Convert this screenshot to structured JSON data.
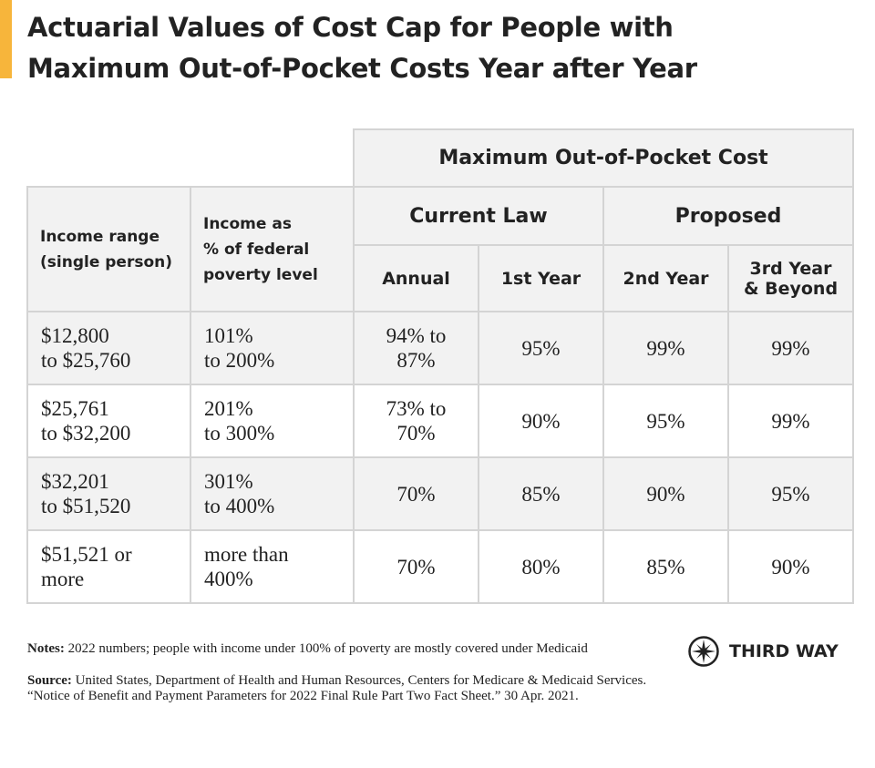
{
  "title_lines": [
    "Actuarial Values of Cost Cap for People with",
    "Maximum Out-of-Pocket Costs Year after Year"
  ],
  "table": {
    "group_header": "Maximum Out-of-Pocket Cost",
    "row_headers": [
      [
        "Income range",
        "(single person)"
      ],
      [
        "Income as",
        "% of federal",
        "poverty level"
      ]
    ],
    "groups": [
      "Current Law",
      "Proposed"
    ],
    "subheaders": [
      [
        "Annual"
      ],
      [
        "1st Year"
      ],
      [
        "2nd Year"
      ],
      [
        "3rd Year",
        "& Beyond"
      ]
    ],
    "rows": [
      [
        [
          "$12,800",
          "to $25,760"
        ],
        [
          "101%",
          "to 200%"
        ],
        [
          "94% to",
          "87%"
        ],
        [
          "95%"
        ],
        [
          "99%"
        ],
        [
          "99%"
        ]
      ],
      [
        [
          "$25,761",
          "to $32,200"
        ],
        [
          "201%",
          "to 300%"
        ],
        [
          "73% to",
          "70%"
        ],
        [
          "90%"
        ],
        [
          "95%"
        ],
        [
          "99%"
        ]
      ],
      [
        [
          "$32,201",
          "to $51,520"
        ],
        [
          "301%",
          "to 400%"
        ],
        [
          "70%"
        ],
        [
          "85%"
        ],
        [
          "90%"
        ],
        [
          "95%"
        ]
      ],
      [
        [
          "$51,521 or",
          "more"
        ],
        [
          "more than",
          "400%"
        ],
        [
          "70%"
        ],
        [
          "80%"
        ],
        [
          "85%"
        ],
        [
          "90%"
        ]
      ]
    ]
  },
  "notes": {
    "label": "Notes:",
    "text": "2022 numbers; people with income under 100% of poverty are mostly covered under Medicaid"
  },
  "source": {
    "label": "Source:",
    "text": "United States, Department of Health and Human Resources, Centers for Medicare & Medicaid Services. “Notice of Benefit and Payment Parameters for 2022 Final Rule Part Two Fact Sheet.” 30 Apr. 2021."
  },
  "logo": "THIRD WAY"
}
